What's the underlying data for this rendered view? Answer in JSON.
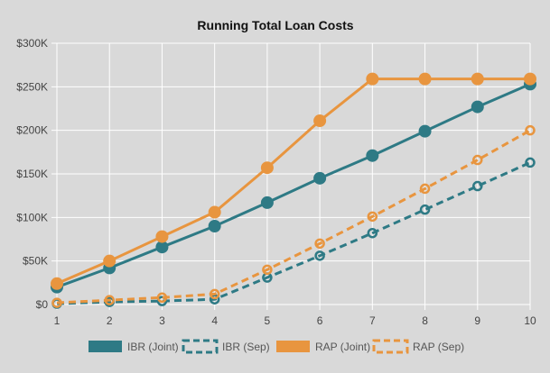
{
  "chart_data": {
    "type": "line",
    "title": "Running Total Loan Costs",
    "xlabel": "",
    "ylabel": "",
    "x": [
      1,
      2,
      3,
      4,
      5,
      6,
      7,
      8,
      9,
      10
    ],
    "ylim": [
      0,
      300000
    ],
    "yticks": [
      0,
      50000,
      100000,
      150000,
      200000,
      250000,
      300000
    ],
    "ytick_labels": [
      "$0",
      "$50K",
      "$100K",
      "$150K",
      "$200K",
      "$250K",
      "$300K"
    ],
    "grid": true,
    "legend": "bottom",
    "series": [
      {
        "name": "IBR (Joint)",
        "color": "#2e7a85",
        "dashed": false,
        "filled": true,
        "values": [
          20000,
          42000,
          66000,
          90000,
          117000,
          145000,
          171000,
          199000,
          227000,
          253000
        ]
      },
      {
        "name": "IBR (Sep)",
        "color": "#2e7a85",
        "dashed": true,
        "filled": false,
        "values": [
          1000,
          3000,
          4000,
          6000,
          31000,
          56000,
          82000,
          109000,
          136000,
          163000
        ]
      },
      {
        "name": "RAP (Joint)",
        "color": "#e8953f",
        "dashed": false,
        "filled": true,
        "values": [
          24000,
          50000,
          78000,
          106000,
          157000,
          211000,
          259000,
          259000,
          259000,
          259000
        ]
      },
      {
        "name": "RAP (Sep)",
        "color": "#e8953f",
        "dashed": true,
        "filled": false,
        "values": [
          2000,
          5000,
          8000,
          12000,
          40000,
          70000,
          101000,
          133000,
          166000,
          200000
        ]
      }
    ]
  }
}
